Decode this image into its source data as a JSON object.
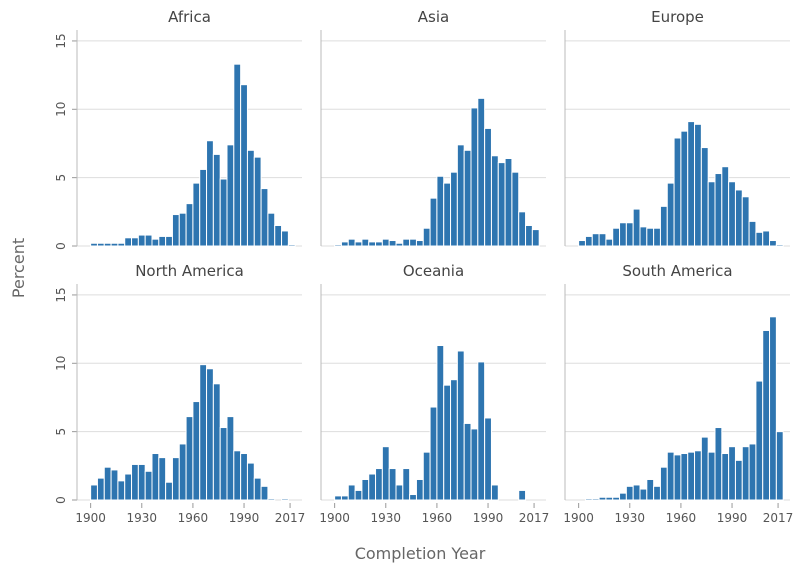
{
  "xlabel": "Completion Year",
  "ylabel": "Percent",
  "chart_data": [
    {
      "type": "histogram",
      "title": "Africa",
      "color": "#2e75b0",
      "bins": [
        1900,
        1904,
        1908,
        1912,
        1916,
        1920,
        1924,
        1928,
        1932,
        1936,
        1940,
        1944,
        1948,
        1952,
        1956,
        1960,
        1964,
        1968,
        1972,
        1976,
        1980,
        1984,
        1988,
        1992,
        1996,
        2000,
        2004,
        2008,
        2012,
        2016,
        2020
      ],
      "values": [
        0.2,
        0.2,
        0.2,
        0.2,
        0.2,
        0.6,
        0.6,
        0.8,
        0.8,
        0.5,
        0.7,
        0.7,
        2.3,
        2.4,
        3.1,
        4.6,
        5.6,
        7.7,
        6.7,
        4.9,
        7.4,
        13.3,
        11.8,
        7.0,
        6.5,
        4.2,
        2.4,
        1.5,
        1.1,
        0.1
      ],
      "xlim": [
        1892,
        2024
      ],
      "ylim": [
        0,
        15.8
      ],
      "yticks": [
        0,
        5,
        10,
        15
      ],
      "grid": true
    },
    {
      "type": "histogram",
      "title": "Asia",
      "color": "#2e75b0",
      "bins": [
        1900,
        1904,
        1908,
        1912,
        1916,
        1920,
        1924,
        1928,
        1932,
        1936,
        1940,
        1944,
        1948,
        1952,
        1956,
        1960,
        1964,
        1968,
        1972,
        1976,
        1980,
        1984,
        1988,
        1992,
        1996,
        2000,
        2004,
        2008,
        2012,
        2016,
        2020
      ],
      "values": [
        0.1,
        0.3,
        0.5,
        0.3,
        0.5,
        0.3,
        0.3,
        0.5,
        0.4,
        0.2,
        0.5,
        0.5,
        0.4,
        1.3,
        3.5,
        5.1,
        4.6,
        5.4,
        7.4,
        7.0,
        10.1,
        10.8,
        8.6,
        6.6,
        6.1,
        6.4,
        5.4,
        2.5,
        1.5,
        1.2
      ],
      "xlim": [
        1892,
        2024
      ],
      "ylim": [
        0,
        15.8
      ],
      "yticks": [
        0,
        5,
        10,
        15
      ],
      "grid": true
    },
    {
      "type": "histogram",
      "title": "Europe",
      "color": "#2e75b0",
      "bins": [
        1900,
        1904,
        1908,
        1912,
        1916,
        1920,
        1924,
        1928,
        1932,
        1936,
        1940,
        1944,
        1948,
        1952,
        1956,
        1960,
        1964,
        1968,
        1972,
        1976,
        1980,
        1984,
        1988,
        1992,
        1996,
        2000,
        2004,
        2008,
        2012,
        2016,
        2020
      ],
      "values": [
        0.4,
        0.7,
        0.9,
        0.9,
        0.5,
        1.3,
        1.7,
        1.7,
        2.7,
        1.4,
        1.3,
        1.3,
        2.9,
        4.6,
        7.9,
        8.4,
        9.1,
        8.9,
        7.2,
        4.7,
        5.3,
        5.8,
        4.7,
        4.1,
        3.6,
        1.8,
        1.0,
        1.1,
        0.4,
        0.1
      ],
      "xlim": [
        1892,
        2024
      ],
      "ylim": [
        0,
        15.8
      ],
      "yticks": [
        0,
        5,
        10,
        15
      ],
      "grid": true
    },
    {
      "type": "histogram",
      "title": "North America",
      "color": "#2e75b0",
      "bins": [
        1900,
        1904,
        1908,
        1912,
        1916,
        1920,
        1924,
        1928,
        1932,
        1936,
        1940,
        1944,
        1948,
        1952,
        1956,
        1960,
        1964,
        1968,
        1972,
        1976,
        1980,
        1984,
        1988,
        1992,
        1996,
        2000,
        2004,
        2008,
        2012,
        2016,
        2020
      ],
      "values": [
        1.1,
        1.6,
        2.4,
        2.2,
        1.4,
        1.9,
        2.6,
        2.6,
        2.1,
        3.4,
        3.1,
        1.3,
        3.1,
        4.1,
        6.1,
        7.2,
        9.9,
        9.6,
        8.5,
        5.3,
        6.1,
        3.6,
        3.4,
        2.7,
        1.6,
        1.0,
        0.1,
        0,
        0.1,
        0
      ],
      "xlim": [
        1892,
        2024
      ],
      "ylim": [
        0,
        15.8
      ],
      "xticks": [
        1900,
        1930,
        1960,
        1990,
        2017
      ],
      "yticks": [
        0,
        5,
        10,
        15
      ],
      "grid": true
    },
    {
      "type": "histogram",
      "title": "Oceania",
      "color": "#2e75b0",
      "bins": [
        1900,
        1904,
        1908,
        1912,
        1916,
        1920,
        1924,
        1928,
        1932,
        1936,
        1940,
        1944,
        1948,
        1952,
        1956,
        1960,
        1964,
        1968,
        1972,
        1976,
        1980,
        1984,
        1988,
        1992,
        1996,
        2000,
        2004,
        2008,
        2012,
        2016,
        2020
      ],
      "values": [
        0.3,
        0.3,
        1.1,
        0.7,
        1.5,
        1.9,
        2.3,
        3.9,
        2.3,
        1.1,
        2.3,
        0.4,
        1.5,
        3.5,
        6.8,
        11.3,
        8.4,
        8.8,
        10.9,
        5.6,
        5.2,
        10.1,
        6.0,
        1.1,
        0,
        0,
        0,
        0.7,
        0,
        0
      ],
      "xlim": [
        1892,
        2024
      ],
      "ylim": [
        0,
        15.8
      ],
      "xticks": [
        1900,
        1930,
        1960,
        1990,
        2017
      ],
      "yticks": [
        0,
        5,
        10,
        15
      ],
      "grid": true
    },
    {
      "type": "histogram",
      "title": "South America",
      "color": "#2e75b0",
      "bins": [
        1900,
        1904,
        1908,
        1912,
        1916,
        1920,
        1924,
        1928,
        1932,
        1936,
        1940,
        1944,
        1948,
        1952,
        1956,
        1960,
        1964,
        1968,
        1972,
        1976,
        1980,
        1984,
        1988,
        1992,
        1996,
        2000,
        2004,
        2008,
        2012,
        2016,
        2020
      ],
      "values": [
        0,
        0.1,
        0.1,
        0.2,
        0.2,
        0.2,
        0.5,
        1.0,
        1.1,
        0.8,
        1.5,
        1.0,
        2.4,
        3.5,
        3.3,
        3.4,
        3.5,
        3.6,
        4.6,
        3.5,
        5.3,
        3.4,
        3.9,
        2.9,
        3.9,
        4.1,
        8.7,
        12.4,
        13.4,
        5.0
      ],
      "xlim": [
        1892,
        2024
      ],
      "ylim": [
        0,
        15.8
      ],
      "xticks": [
        1900,
        1930,
        1960,
        1990,
        2017
      ],
      "yticks": [
        0,
        5,
        10,
        15
      ],
      "grid": true
    }
  ]
}
